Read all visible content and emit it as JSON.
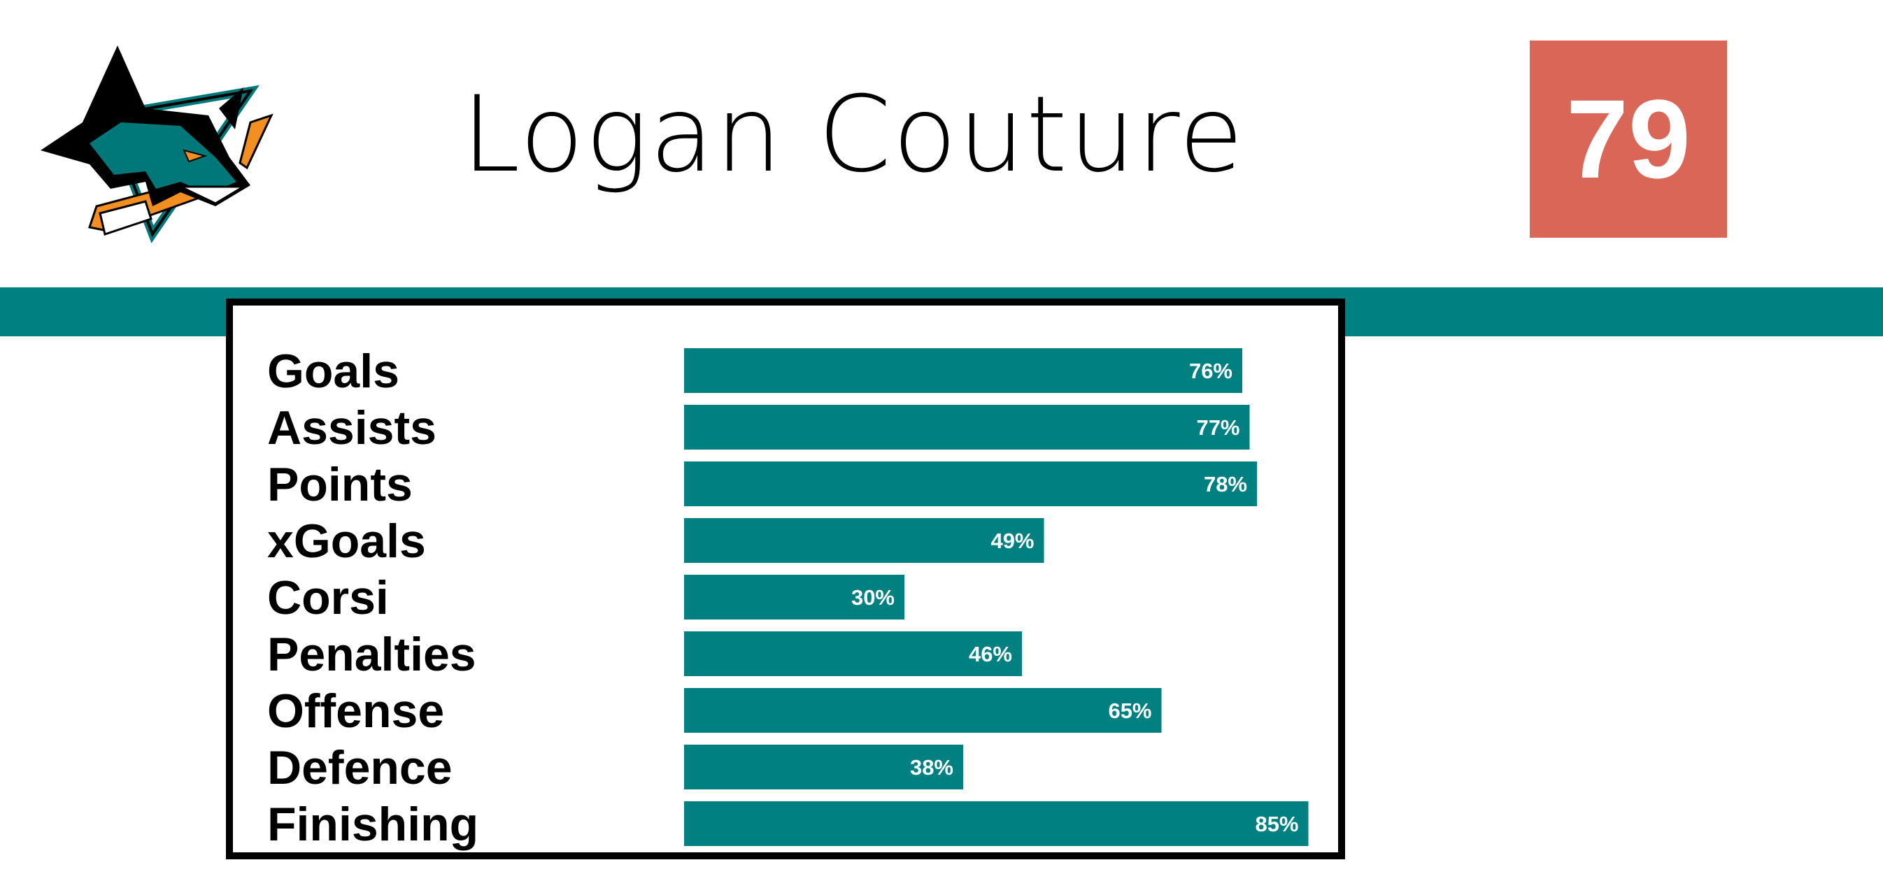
{
  "header": {
    "player_name": "Logan Couture",
    "rating": "79",
    "logo_icon": "san-jose-sharks-logo-icon"
  },
  "colors": {
    "teal": "#008080",
    "rating_bg": "#D96656",
    "frame": "#000000",
    "bar_label": "#ffffff"
  },
  "chart_data": {
    "type": "bar",
    "orientation": "horizontal",
    "categories": [
      "Goals",
      "Assists",
      "Points",
      "xGoals",
      "Corsi",
      "Penalties",
      "Offense",
      "Defence",
      "Finishing"
    ],
    "values": [
      76,
      77,
      78,
      49,
      30,
      46,
      65,
      38,
      85
    ],
    "value_labels": [
      "76%",
      "77%",
      "78%",
      "49%",
      "30%",
      "46%",
      "65%",
      "38%",
      "85%"
    ],
    "xlim": [
      0,
      100
    ],
    "grid": false,
    "legend": "none"
  }
}
